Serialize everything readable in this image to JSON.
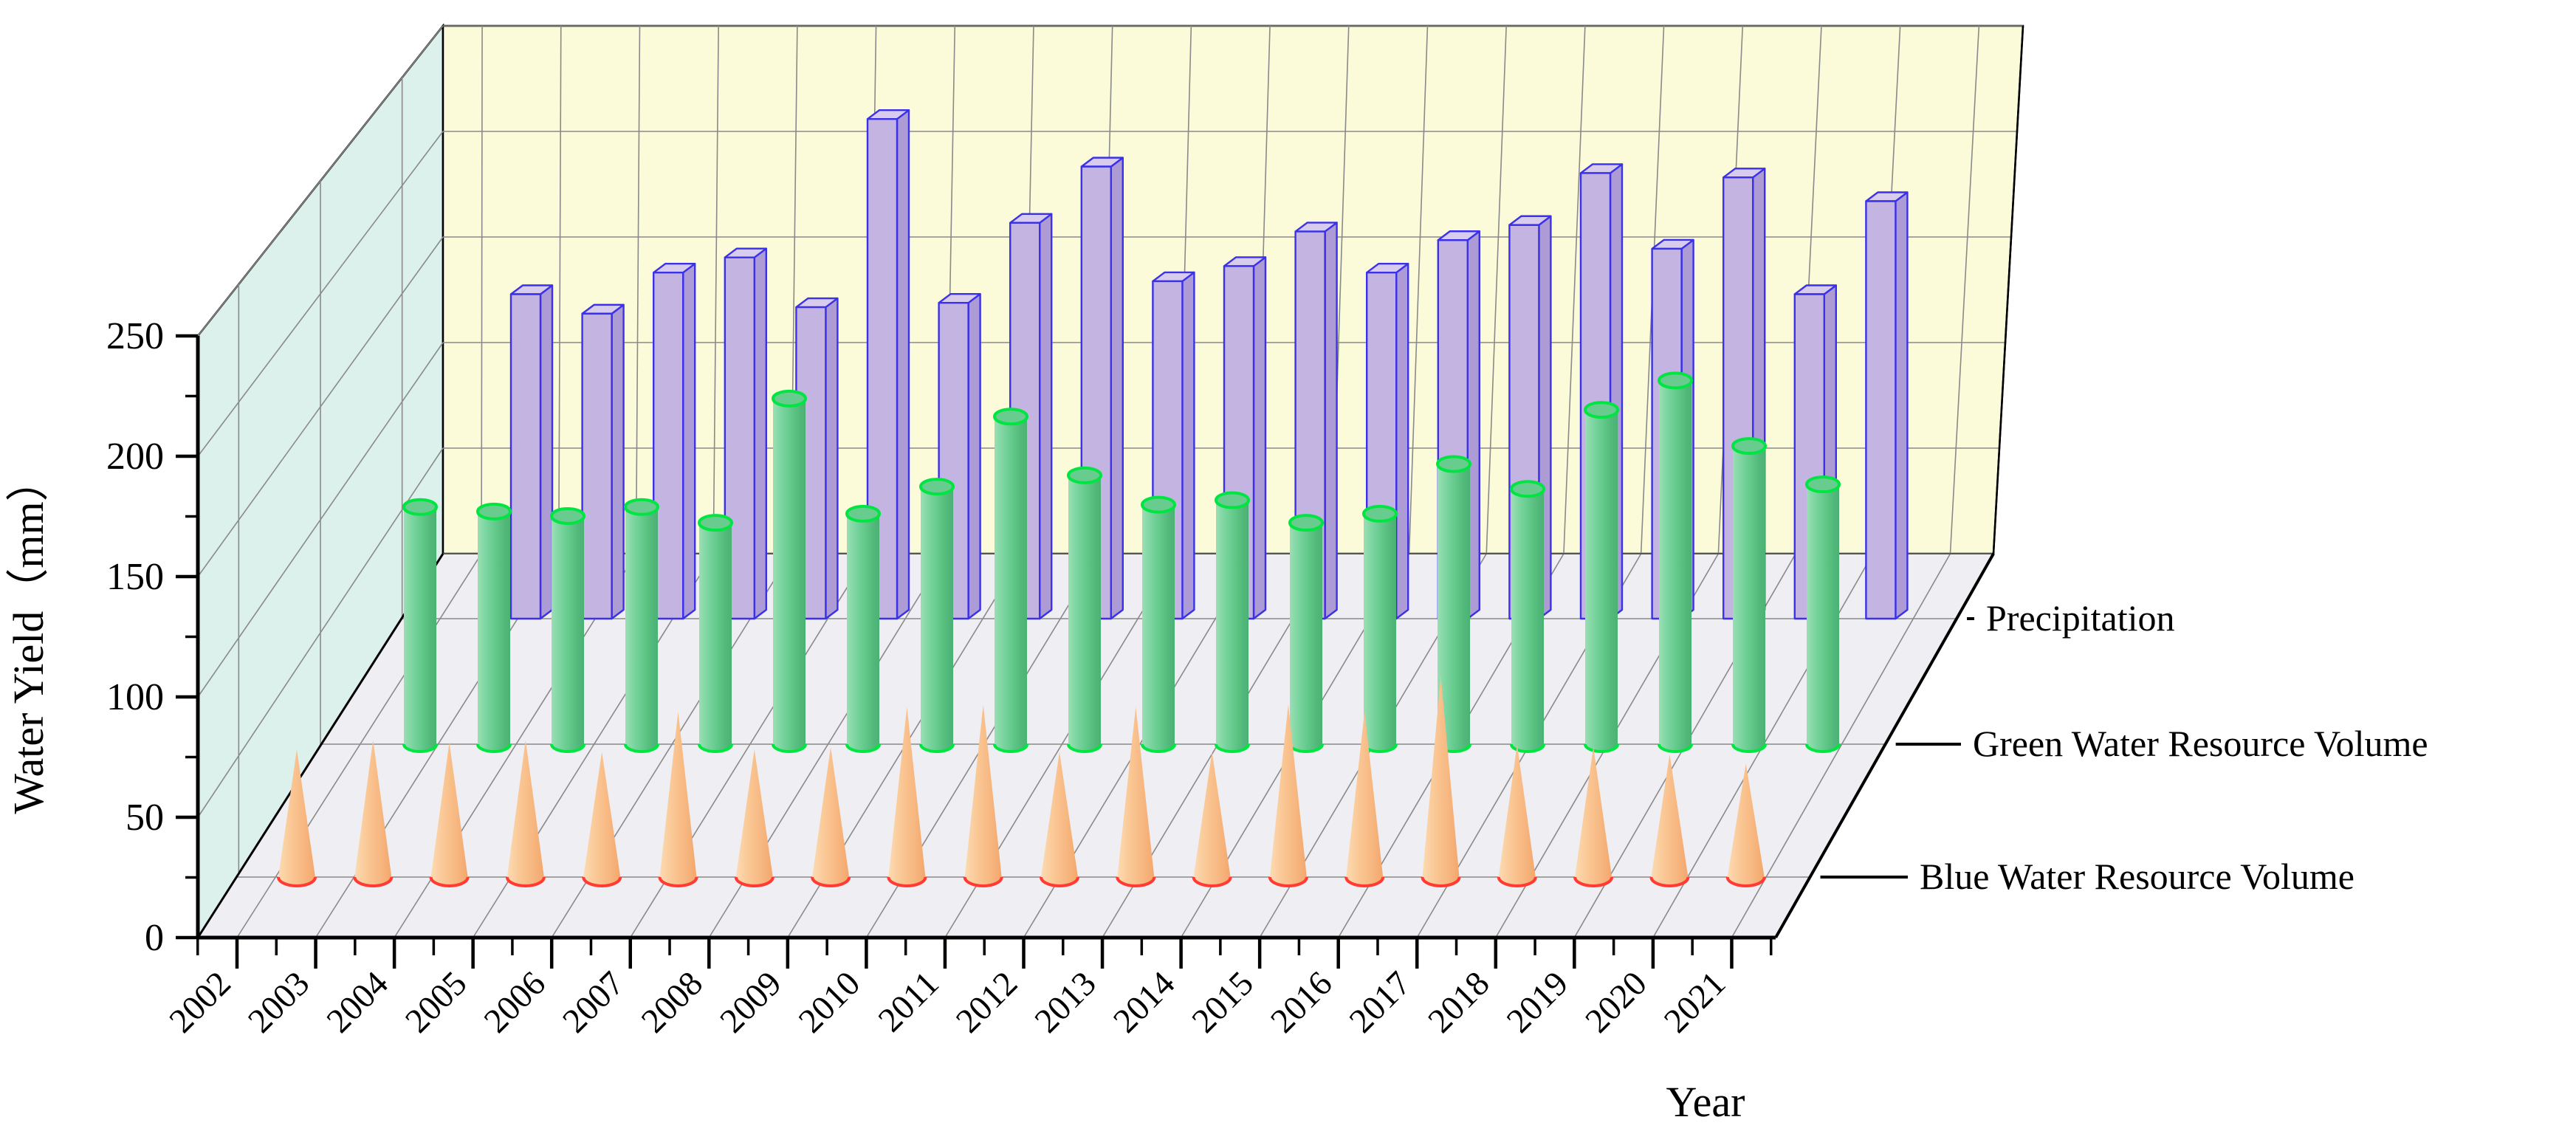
{
  "chart_data": {
    "type": "bar",
    "subtype": "3d-xyy-bars",
    "title": "",
    "xlabel": "Year",
    "ylabel": "Water Yield（mm）",
    "ylim": [
      0,
      250
    ],
    "y_major_ticks": [
      "0",
      "50",
      "100",
      "150",
      "200",
      "250"
    ],
    "y_minor_interval": 25,
    "grid": true,
    "legend_position": "right-depth-axis",
    "categories": [
      "2002",
      "2003",
      "2004",
      "2005",
      "2006",
      "2007",
      "2008",
      "2009",
      "2010",
      "2011",
      "2012",
      "2013",
      "2014",
      "2015",
      "2016",
      "2017",
      "2018",
      "2019",
      "2020",
      "2021"
    ],
    "series": [
      {
        "name": "Precipitation",
        "shape": "prism",
        "fill": "#C4B4E1",
        "fill_side": "#AC9BD4",
        "fill_top": "#D8CCEE",
        "edge": "#3A31E8",
        "values": [
          150,
          141,
          160,
          167,
          144,
          231,
          146,
          183,
          209,
          156,
          163,
          179,
          160,
          175,
          182,
          206,
          171,
          204,
          150,
          193
        ]
      },
      {
        "name": "Green Water Resource Volume",
        "shape": "cylinder",
        "fill": "#68CC8E",
        "edge": "#00E542",
        "values": [
          105,
          103,
          101,
          105,
          98,
          153,
          102,
          114,
          145,
          119,
          106,
          108,
          98,
          102,
          124,
          113,
          148,
          161,
          132,
          115
        ]
      },
      {
        "name": "Blue Water Resource Volume",
        "shape": "cone",
        "fill": "#FAC795",
        "edge": "#FF3B33",
        "values": [
          54,
          58,
          57,
          58,
          53,
          70,
          54,
          55,
          72,
          73,
          53,
          72,
          53,
          73,
          70,
          85,
          56,
          55,
          52,
          48
        ]
      }
    ],
    "walls": {
      "left_wall": "#DCF1EB",
      "back_wall": "#FBFAD9",
      "floor": "#EFEEF2",
      "gridline": "#8A8A8A",
      "frame": "#000000"
    }
  }
}
